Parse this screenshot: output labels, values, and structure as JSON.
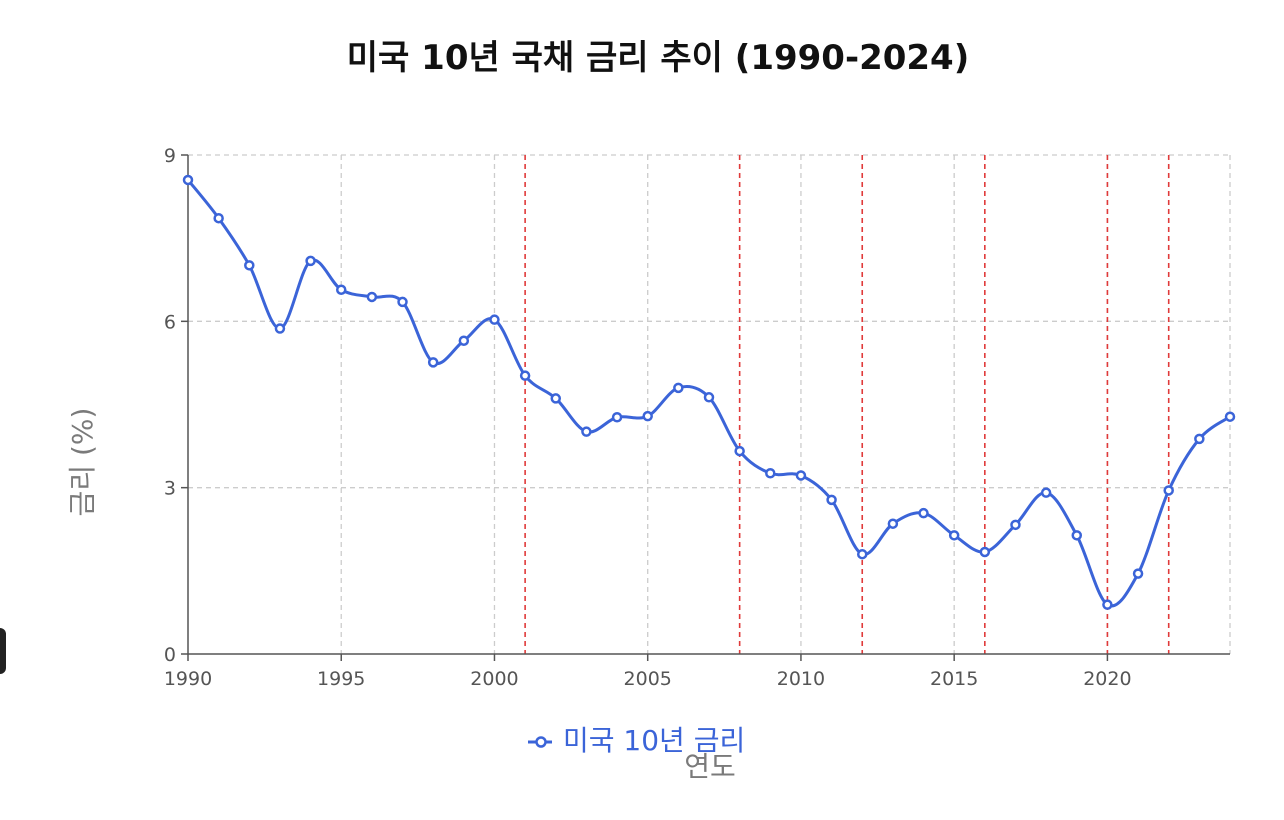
{
  "chart_data": {
    "type": "line",
    "title": "미국 10년 국채 금리 추이 (1990-2024)",
    "xlabel": "연도",
    "ylabel": "금리 (%)",
    "xlim": [
      1990,
      2024
    ],
    "ylim": [
      0,
      9
    ],
    "x_ticks": [
      1990,
      1995,
      2000,
      2005,
      2010,
      2015,
      2020
    ],
    "y_ticks": [
      0,
      3,
      6,
      9
    ],
    "grid": true,
    "legend_position": "bottom-center",
    "series": [
      {
        "name": "미국 10년 금리",
        "color": "#3b64d8",
        "marker": "hollow-circle",
        "x": [
          1990,
          1991,
          1992,
          1993,
          1994,
          1995,
          1996,
          1997,
          1998,
          1999,
          2000,
          2001,
          2002,
          2003,
          2004,
          2005,
          2006,
          2007,
          2008,
          2009,
          2010,
          2011,
          2012,
          2013,
          2014,
          2015,
          2016,
          2017,
          2018,
          2019,
          2020,
          2021,
          2022,
          2023,
          2024
        ],
        "values": [
          8.55,
          7.86,
          7.01,
          5.87,
          7.09,
          6.57,
          6.44,
          6.35,
          5.26,
          5.65,
          6.03,
          5.02,
          4.61,
          4.01,
          4.27,
          4.29,
          4.8,
          4.63,
          3.66,
          3.26,
          3.22,
          2.78,
          1.8,
          2.35,
          2.54,
          2.14,
          1.84,
          2.33,
          2.91,
          2.14,
          0.89,
          1.45,
          2.95,
          3.88,
          4.28
        ]
      }
    ],
    "annotations": {
      "type": "vertical-dashed-lines",
      "color": "#e03a3a",
      "x": [
        2001,
        2008,
        2012,
        2016,
        2020,
        2022
      ]
    },
    "grid_color": "#cccccc",
    "axis_color": "#555555"
  }
}
